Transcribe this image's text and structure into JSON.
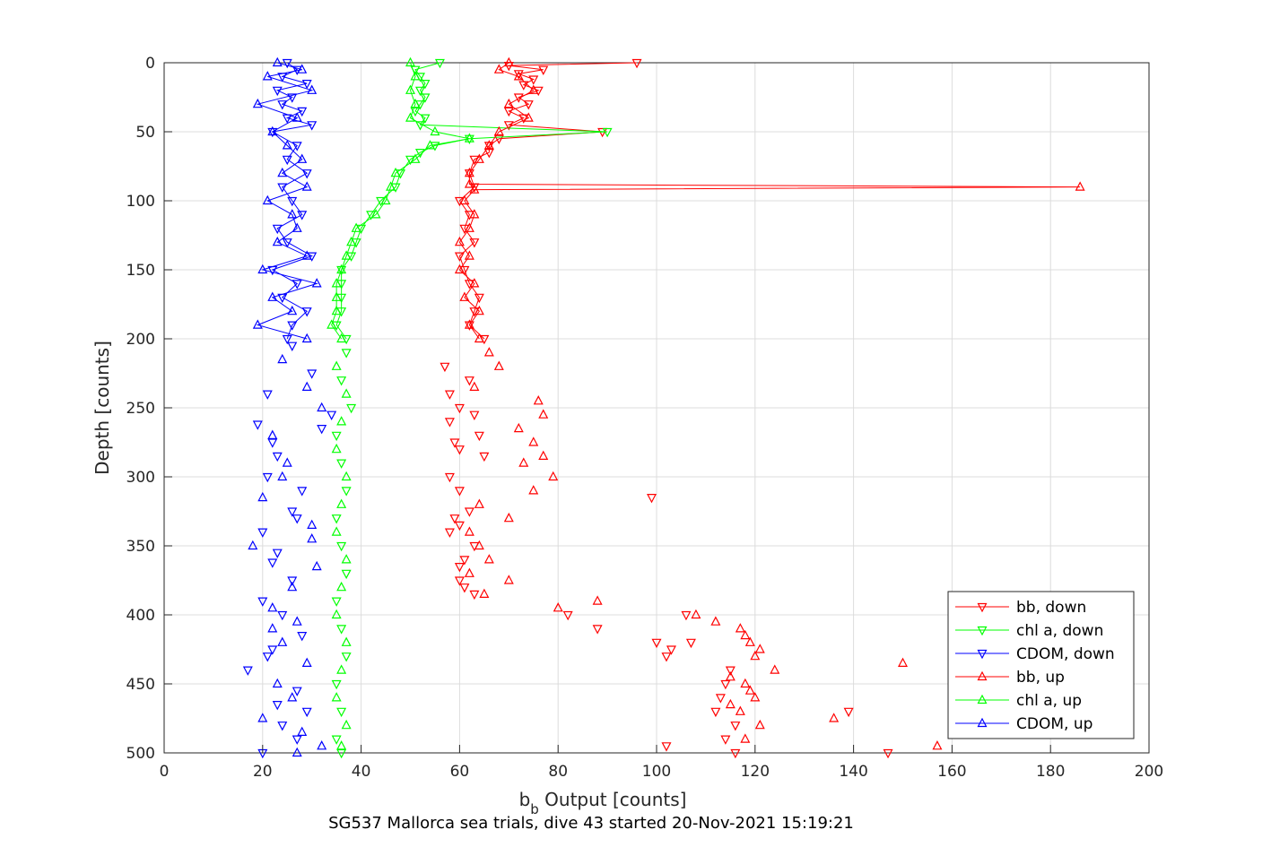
{
  "chart_data": {
    "type": "scatter",
    "title": "",
    "caption": "SG537 Mallorca sea trials, dive 43 started 20-Nov-2021 15:19:21",
    "xlabel_main": "b",
    "xlabel_sub": "b",
    "xlabel_rest": " Output [counts]",
    "ylabel": "Depth [counts]",
    "xlim": [
      0,
      200
    ],
    "ylim": [
      0,
      500
    ],
    "y_reversed": true,
    "grid": true,
    "legend_position": "bottom-right",
    "x_ticks": [
      "0",
      "20",
      "40",
      "60",
      "80",
      "100",
      "120",
      "140",
      "160",
      "180",
      "200"
    ],
    "y_ticks": [
      "0",
      "50",
      "100",
      "150",
      "200",
      "250",
      "300",
      "350",
      "400",
      "450",
      "500"
    ],
    "series": [
      {
        "name": "bb, down",
        "color": "#ff0000",
        "marker": "triangle-down",
        "connected": true,
        "depth": [
          0,
          2,
          5,
          8,
          12,
          16,
          20,
          25,
          30,
          35,
          40,
          45,
          50,
          55,
          60,
          65,
          70,
          80,
          90,
          100,
          110,
          120,
          130,
          140,
          150,
          160,
          170,
          180,
          190,
          200
        ],
        "values": [
          96,
          70,
          77,
          72,
          75,
          73,
          76,
          72,
          74,
          70,
          73,
          70,
          89,
          68,
          66,
          66,
          63,
          62,
          63,
          60,
          62,
          61,
          63,
          60,
          61,
          62,
          64,
          63,
          62,
          65
        ]
      },
      {
        "name": "chl a, down",
        "color": "#00ff00",
        "marker": "triangle-down",
        "connected": true,
        "depth": [
          0,
          5,
          10,
          15,
          20,
          25,
          30,
          35,
          40,
          45,
          50,
          55,
          60,
          65,
          70,
          80,
          90,
          100,
          110,
          120,
          130,
          140,
          150,
          160,
          170,
          180,
          190,
          200
        ],
        "values": [
          56,
          51,
          52,
          53,
          52,
          53,
          52,
          51,
          53,
          52,
          90,
          62,
          55,
          52,
          50,
          48,
          47,
          44,
          42,
          40,
          39,
          38,
          36,
          36,
          36,
          36,
          35,
          37
        ]
      },
      {
        "name": "CDOM, down",
        "color": "#0000ff",
        "marker": "triangle-down",
        "connected": true,
        "depth": [
          0,
          5,
          10,
          15,
          20,
          25,
          30,
          35,
          40,
          45,
          50,
          60,
          70,
          80,
          90,
          100,
          110,
          120,
          130,
          140,
          150,
          160,
          170,
          180,
          190,
          200
        ],
        "values": [
          25,
          27,
          24,
          29,
          23,
          26,
          24,
          28,
          25,
          30,
          22,
          27,
          25,
          29,
          24,
          26,
          28,
          23,
          25,
          30,
          22,
          27,
          24,
          29,
          26,
          25
        ]
      },
      {
        "name": "bb, up",
        "color": "#ff0000",
        "marker": "triangle-up",
        "connected": true,
        "depth": [
          0,
          5,
          10,
          20,
          30,
          40,
          50,
          60,
          70,
          80,
          88,
          90,
          92,
          100,
          110,
          120,
          130,
          140,
          150,
          160,
          170,
          180,
          190,
          200
        ],
        "values": [
          70,
          68,
          72,
          75,
          70,
          74,
          68,
          66,
          64,
          62,
          62,
          186,
          63,
          61,
          63,
          62,
          60,
          62,
          60,
          63,
          61,
          64,
          62,
          64
        ]
      },
      {
        "name": "chl a, up",
        "color": "#00ff00",
        "marker": "triangle-up",
        "connected": true,
        "depth": [
          0,
          10,
          20,
          30,
          40,
          50,
          55,
          60,
          70,
          80,
          90,
          100,
          110,
          120,
          130,
          140,
          150,
          160,
          170,
          180,
          190,
          200
        ],
        "values": [
          50,
          51,
          50,
          51,
          50,
          55,
          62,
          54,
          51,
          47,
          46,
          45,
          43,
          39,
          38,
          37,
          36,
          35,
          35,
          35,
          34,
          36
        ]
      },
      {
        "name": "CDOM, up",
        "color": "#0000ff",
        "marker": "triangle-up",
        "connected": true,
        "depth": [
          0,
          5,
          10,
          20,
          30,
          40,
          50,
          60,
          70,
          80,
          90,
          100,
          110,
          120,
          130,
          140,
          150,
          160,
          170,
          180,
          190,
          200
        ],
        "values": [
          23,
          28,
          21,
          30,
          19,
          27,
          22,
          25,
          28,
          24,
          29,
          21,
          26,
          27,
          23,
          29,
          20,
          31,
          22,
          26,
          19,
          29
        ]
      },
      {
        "name": "",
        "color": "#ff0000",
        "marker": "triangle-down",
        "connected": false,
        "depth": [
          220,
          230,
          240,
          250,
          255,
          260,
          270,
          275,
          280,
          285,
          300,
          310,
          315,
          325,
          330,
          335,
          340,
          350,
          360,
          365,
          375,
          380,
          385,
          400,
          410,
          420,
          425,
          430,
          440,
          450,
          460,
          470,
          480,
          490,
          495,
          500,
          500,
          420,
          400,
          470
        ],
        "values": [
          57,
          62,
          58,
          60,
          63,
          58,
          64,
          59,
          60,
          65,
          58,
          60,
          99,
          62,
          59,
          60,
          58,
          63,
          61,
          60,
          60,
          61,
          63,
          82,
          88,
          100,
          103,
          102,
          115,
          114,
          113,
          112,
          116,
          114,
          102,
          116,
          147,
          107,
          106,
          139
        ]
      },
      {
        "name": "",
        "color": "#ff0000",
        "marker": "triangle-up",
        "connected": false,
        "depth": [
          210,
          220,
          235,
          245,
          255,
          265,
          275,
          285,
          290,
          300,
          310,
          320,
          330,
          340,
          350,
          360,
          370,
          375,
          385,
          390,
          395,
          400,
          405,
          410,
          415,
          420,
          425,
          430,
          435,
          440,
          445,
          450,
          455,
          460,
          465,
          470,
          475,
          480,
          490,
          495
        ],
        "values": [
          66,
          68,
          63,
          76,
          77,
          72,
          75,
          77,
          73,
          79,
          75,
          64,
          70,
          62,
          64,
          66,
          62,
          70,
          65,
          88,
          80,
          108,
          112,
          117,
          118,
          119,
          121,
          120,
          150,
          124,
          115,
          118,
          119,
          120,
          115,
          117,
          136,
          121,
          118,
          157
        ]
      },
      {
        "name": "",
        "color": "#00ff00",
        "marker": "triangle-down",
        "connected": false,
        "depth": [
          210,
          230,
          250,
          270,
          290,
          310,
          330,
          350,
          370,
          390,
          410,
          430,
          450,
          470,
          490,
          500
        ],
        "values": [
          37,
          36,
          38,
          35,
          36,
          37,
          35,
          36,
          37,
          35,
          36,
          37,
          35,
          36,
          35,
          36
        ]
      },
      {
        "name": "",
        "color": "#00ff00",
        "marker": "triangle-up",
        "connected": false,
        "depth": [
          220,
          240,
          260,
          280,
          300,
          320,
          340,
          360,
          380,
          400,
          420,
          440,
          460,
          480,
          495
        ],
        "values": [
          35,
          37,
          36,
          35,
          37,
          36,
          35,
          37,
          36,
          35,
          37,
          36,
          35,
          37,
          36
        ]
      },
      {
        "name": "",
        "color": "#0000ff",
        "marker": "triangle-down",
        "connected": false,
        "depth": [
          205,
          225,
          240,
          255,
          262,
          275,
          285,
          300,
          310,
          325,
          340,
          355,
          362,
          375,
          390,
          400,
          415,
          425,
          440,
          455,
          465,
          480,
          490,
          500,
          330,
          265,
          430,
          470
        ],
        "values": [
          26,
          30,
          21,
          34,
          19,
          22,
          23,
          21,
          28,
          26,
          20,
          23,
          22,
          26,
          20,
          24,
          28,
          22,
          17,
          27,
          23,
          24,
          27,
          20,
          27,
          32,
          21,
          29
        ]
      },
      {
        "name": "",
        "color": "#0000ff",
        "marker": "triangle-up",
        "connected": false,
        "depth": [
          215,
          235,
          250,
          270,
          290,
          315,
          335,
          345,
          350,
          365,
          380,
          395,
          405,
          420,
          435,
          450,
          460,
          475,
          485,
          495,
          500,
          300,
          410
        ],
        "values": [
          24,
          29,
          32,
          22,
          25,
          20,
          30,
          30,
          18,
          31,
          26,
          22,
          27,
          24,
          29,
          23,
          26,
          20,
          28,
          32,
          27,
          24,
          22
        ]
      }
    ]
  }
}
